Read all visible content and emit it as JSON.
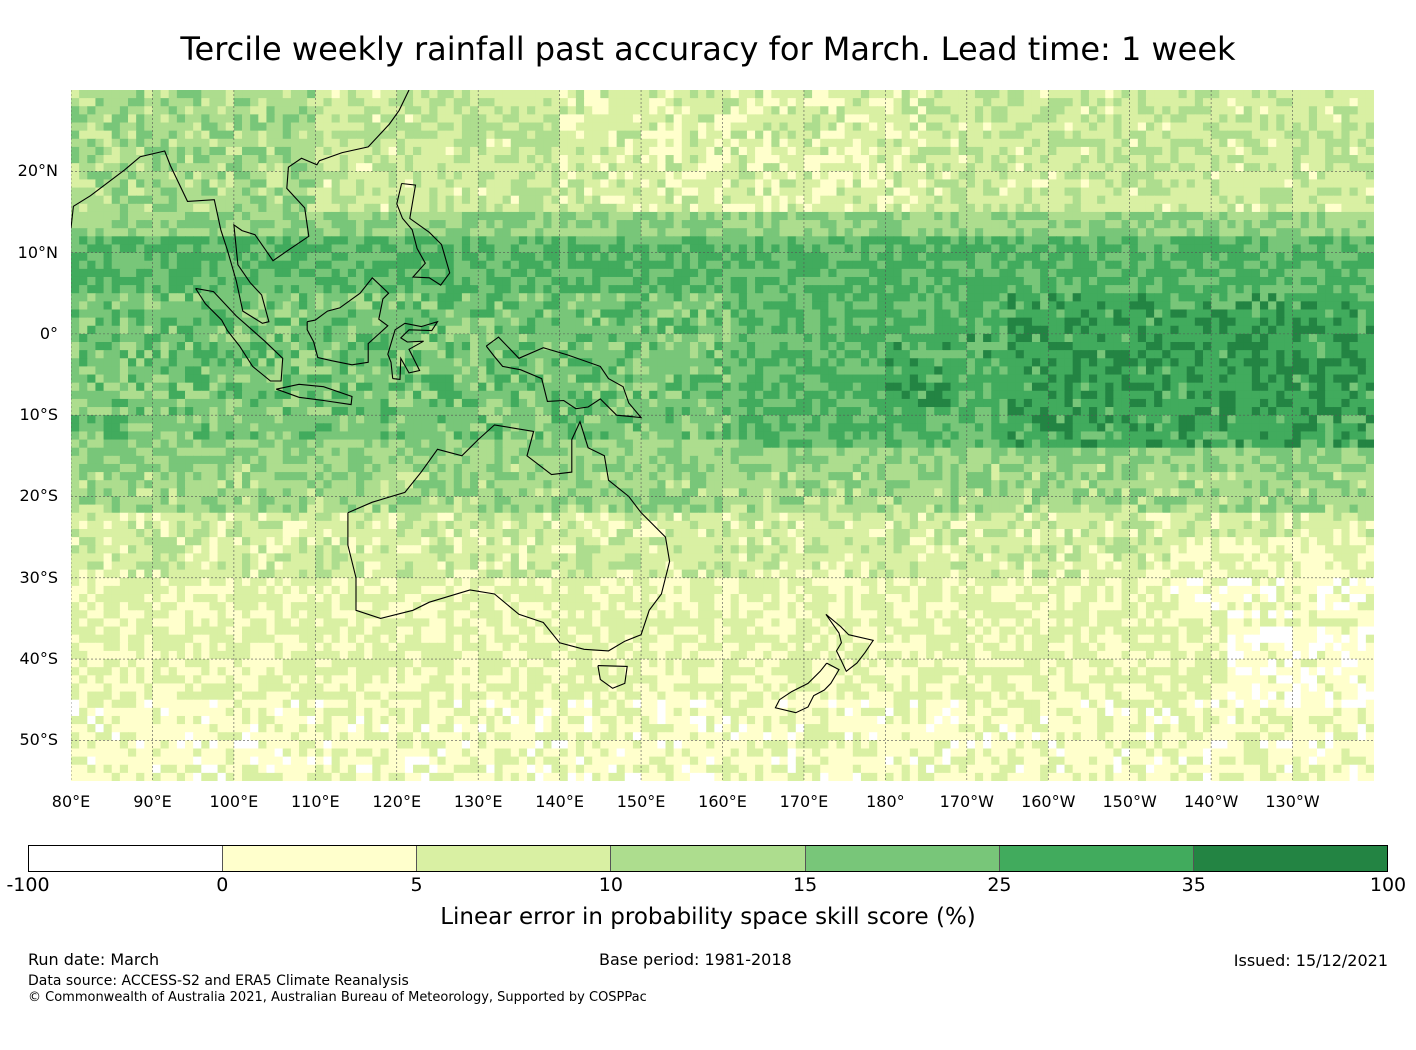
{
  "title": "Tercile weekly rainfall past accuracy for March. Lead time: 1 week",
  "map": {
    "lat_labels": [
      "20°N",
      "10°N",
      "0°",
      "10°S",
      "20°S",
      "30°S",
      "40°S",
      "50°S"
    ],
    "lat_values": [
      20,
      10,
      0,
      -10,
      -20,
      -30,
      -40,
      -50
    ],
    "lon_labels": [
      "80°E",
      "90°E",
      "100°E",
      "110°E",
      "120°E",
      "130°E",
      "140°E",
      "150°E",
      "160°E",
      "170°E",
      "180°",
      "170°W",
      "160°W",
      "150°W",
      "140°W",
      "130°W"
    ],
    "lon_values": [
      80,
      90,
      100,
      110,
      120,
      130,
      140,
      150,
      160,
      170,
      180,
      190,
      200,
      210,
      220,
      230
    ],
    "lon_range": [
      80,
      240
    ],
    "lat_range": [
      -55,
      30
    ]
  },
  "colorbar": {
    "ticks": [
      "-100",
      "0",
      "5",
      "10",
      "15",
      "25",
      "35",
      "100"
    ],
    "colors": [
      "#ffffff",
      "#ffffcc",
      "#d9f0a3",
      "#addd8e",
      "#78c679",
      "#41ab5d",
      "#238443"
    ],
    "label": "Linear error in probability space skill score (%)"
  },
  "footer": {
    "run_date": "Run date: March",
    "base_period": "Base period: 1981-2018",
    "issued": "Issued: 15/12/2021",
    "data_source": "Data source: ACCESS-S2 and ERA5 Climate Reanalysis",
    "copyright": "© Commonwealth of Australia 2021, Australian Bureau of Meteorology, Supported by COSPPac"
  }
}
